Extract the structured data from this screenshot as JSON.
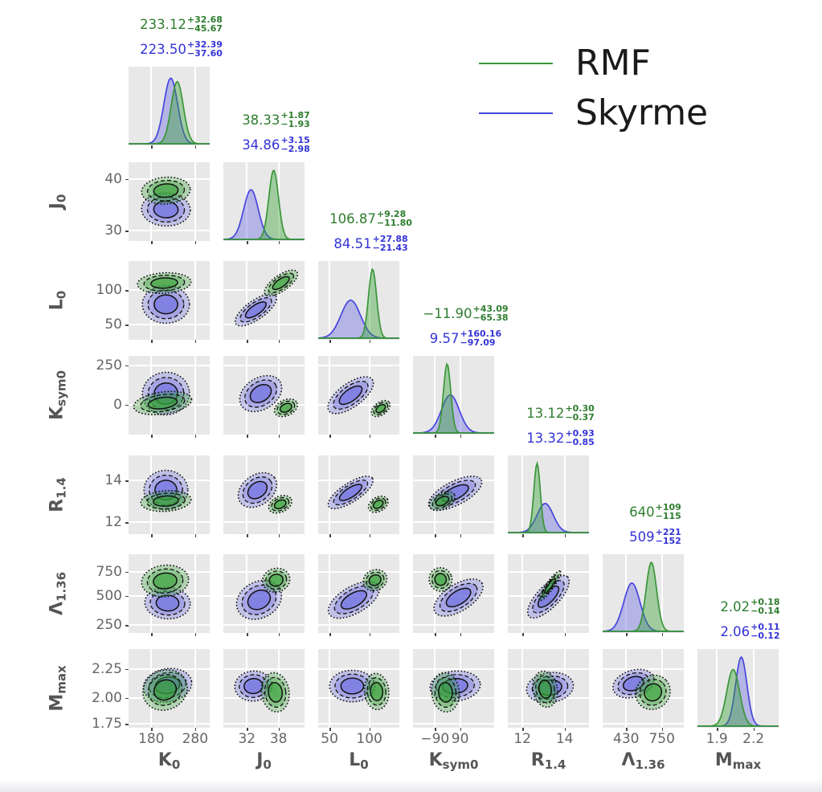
{
  "legend": {
    "items": [
      {
        "label": "RMF",
        "color": "#3a9639"
      },
      {
        "label": "Skyrme",
        "color": "#4646dd"
      }
    ],
    "position": "top-right"
  },
  "colors": {
    "rmf_line": "#3a9639",
    "rmf_fill": "#33a033",
    "rmf_text": "#2e7d2e",
    "skyrme_line": "#4646dd",
    "skyrme_fill": "#6666e0",
    "skyrme_text": "#3434d6",
    "contour_line": "#111111",
    "panel_bg": "#e8e8e8",
    "grid_line": "#ffffff",
    "tick_text": "#666666",
    "axis_text": "#555555"
  },
  "chart_data": {
    "type": "heatmap",
    "subtype": "corner-plot (pairwise KDE contours + marginal densities)",
    "title": "",
    "legend_entries": [
      "RMF",
      "Skyrme"
    ],
    "grid": true,
    "parameters": [
      {
        "name": "K0",
        "label_main": "K",
        "label_sub": "0",
        "rmf_estimate": {
          "value": "233.12",
          "plus": "+32.68",
          "minus": "−45.67"
        },
        "skyrme_estimate": {
          "value": "223.50",
          "plus": "+32.39",
          "minus": "−37.60"
        },
        "x_ticks": [
          {
            "label": "180",
            "f": 0.28
          },
          {
            "label": "280",
            "f": 0.82
          }
        ],
        "y_ticks": [],
        "diag": {
          "rmf": {
            "mu": 0.6,
            "sigma": 0.075,
            "h": 0.9
          },
          "skyrme": {
            "mu": 0.52,
            "sigma": 0.085,
            "h": 0.95
          }
        }
      },
      {
        "name": "J0",
        "label_main": "J",
        "label_sub": "0",
        "rmf_estimate": {
          "value": "38.33",
          "plus": "+1.87",
          "minus": "−1.93"
        },
        "skyrme_estimate": {
          "value": "34.86",
          "plus": "+3.15",
          "minus": "−2.98"
        },
        "x_ticks": [
          {
            "label": "32",
            "f": 0.29
          },
          {
            "label": "38",
            "f": 0.68
          }
        ],
        "y_ticks": [
          {
            "label": "40",
            "f": 0.21
          },
          {
            "label": "30",
            "f": 0.87
          }
        ],
        "diag": {
          "rmf": {
            "mu": 0.62,
            "sigma": 0.06,
            "h": 1.0
          },
          "skyrme": {
            "mu": 0.34,
            "sigma": 0.09,
            "h": 0.72
          }
        }
      },
      {
        "name": "L0",
        "label_main": "L",
        "label_sub": "0",
        "rmf_estimate": {
          "value": "106.87",
          "plus": "+9.28",
          "minus": "−11.80"
        },
        "skyrme_estimate": {
          "value": "84.51",
          "plus": "+27.88",
          "minus": "−21.43"
        },
        "x_ticks": [
          {
            "label": "50",
            "f": 0.14
          },
          {
            "label": "100",
            "f": 0.63
          }
        ],
        "y_ticks": [
          {
            "label": "100",
            "f": 0.37
          },
          {
            "label": "50",
            "f": 0.81
          }
        ],
        "diag": {
          "rmf": {
            "mu": 0.67,
            "sigma": 0.05,
            "h": 1.0
          },
          "skyrme": {
            "mu": 0.4,
            "sigma": 0.12,
            "h": 0.55
          }
        }
      },
      {
        "name": "Ksym0",
        "label_main": "K",
        "label_sub": "sym0",
        "rmf_estimate": {
          "value": "−11.90",
          "plus": "+43.09",
          "minus": "−65.38"
        },
        "skyrme_estimate": {
          "value": "9.57",
          "plus": "+160.16",
          "minus": "−97.09"
        },
        "x_ticks": [
          {
            "label": "−90",
            "f": 0.27
          },
          {
            "label": "90",
            "f": 0.58
          }
        ],
        "y_ticks": [
          {
            "label": "250",
            "f": 0.12
          },
          {
            "label": "0",
            "f": 0.62
          }
        ],
        "diag": {
          "rmf": {
            "mu": 0.42,
            "sigma": 0.045,
            "h": 1.0
          },
          "skyrme": {
            "mu": 0.46,
            "sigma": 0.11,
            "h": 0.55
          }
        }
      },
      {
        "name": "R1.4",
        "label_main": "R",
        "label_sub": "1.4",
        "rmf_estimate": {
          "value": "13.12",
          "plus": "+0.30",
          "minus": "−0.37"
        },
        "skyrme_estimate": {
          "value": "13.32",
          "plus": "+0.93",
          "minus": "−0.85"
        },
        "x_ticks": [
          {
            "label": "12",
            "f": 0.18
          },
          {
            "label": "14",
            "f": 0.7
          }
        ],
        "y_ticks": [
          {
            "label": "14",
            "f": 0.32
          },
          {
            "label": "12",
            "f": 0.85
          }
        ],
        "diag": {
          "rmf": {
            "mu": 0.36,
            "sigma": 0.04,
            "h": 1.0
          },
          "skyrme": {
            "mu": 0.46,
            "sigma": 0.1,
            "h": 0.42
          }
        }
      },
      {
        "name": "Lambda1.36",
        "label_main": "Λ",
        "label_sub": "1.36",
        "rmf_estimate": {
          "value": "640",
          "plus": "+109",
          "minus": "−115"
        },
        "skyrme_estimate": {
          "value": "509",
          "plus": "+221",
          "minus": "−152"
        },
        "x_ticks": [
          {
            "label": "430",
            "f": 0.29
          },
          {
            "label": "750",
            "f": 0.73
          }
        ],
        "y_ticks": [
          {
            "label": "750",
            "f": 0.22
          },
          {
            "label": "500",
            "f": 0.53
          },
          {
            "label": "250",
            "f": 0.9
          }
        ],
        "diag": {
          "rmf": {
            "mu": 0.6,
            "sigma": 0.065,
            "h": 1.0
          },
          "skyrme": {
            "mu": 0.36,
            "sigma": 0.1,
            "h": 0.7
          }
        }
      },
      {
        "name": "Mmax",
        "label_main": "M",
        "label_sub": "max",
        "rmf_estimate": {
          "value": "2.02",
          "plus": "+0.18",
          "minus": "−0.14"
        },
        "skyrme_estimate": {
          "value": "2.06",
          "plus": "+0.11",
          "minus": "−0.12"
        },
        "x_ticks": [
          {
            "label": "1.9",
            "f": 0.24
          },
          {
            "label": "2.2",
            "f": 0.69
          }
        ],
        "y_ticks": [
          {
            "label": "2.25",
            "f": 0.25
          },
          {
            "label": "2.00",
            "f": 0.62
          },
          {
            "label": "1.75",
            "f": 0.95
          }
        ],
        "diag": {
          "rmf": {
            "mu": 0.44,
            "sigma": 0.08,
            "h": 0.82
          },
          "skyrme": {
            "mu": 0.54,
            "sigma": 0.07,
            "h": 1.0
          }
        }
      }
    ],
    "panels": [
      {
        "r": 1,
        "c": 0,
        "blobs": [
          {
            "series": "skyrme",
            "cx": 0.46,
            "cy": 0.6,
            "rx": 0.3,
            "ry": 0.21,
            "rot": 2
          },
          {
            "series": "rmf",
            "cx": 0.46,
            "cy": 0.36,
            "rx": 0.3,
            "ry": 0.17,
            "rot": -4
          }
        ]
      },
      {
        "r": 2,
        "c": 0,
        "blobs": [
          {
            "series": "skyrme",
            "cx": 0.46,
            "cy": 0.55,
            "rx": 0.29,
            "ry": 0.24,
            "rot": 0
          },
          {
            "series": "rmf",
            "cx": 0.44,
            "cy": 0.28,
            "rx": 0.33,
            "ry": 0.13,
            "rot": -3
          }
        ]
      },
      {
        "r": 2,
        "c": 1,
        "blobs": [
          {
            "series": "skyrme",
            "cx": 0.4,
            "cy": 0.62,
            "rx": 0.3,
            "ry": 0.12,
            "rot": -35
          },
          {
            "series": "rmf",
            "cx": 0.71,
            "cy": 0.28,
            "rx": 0.24,
            "ry": 0.1,
            "rot": -35
          }
        ]
      },
      {
        "r": 3,
        "c": 0,
        "blobs": [
          {
            "series": "skyrme",
            "cx": 0.46,
            "cy": 0.48,
            "rx": 0.29,
            "ry": 0.27,
            "rot": -5
          },
          {
            "series": "rmf",
            "cx": 0.42,
            "cy": 0.6,
            "rx": 0.36,
            "ry": 0.14,
            "rot": -8
          }
        ]
      },
      {
        "r": 3,
        "c": 1,
        "blobs": [
          {
            "series": "skyrme",
            "cx": 0.46,
            "cy": 0.48,
            "rx": 0.28,
            "ry": 0.2,
            "rot": -32
          },
          {
            "series": "rmf",
            "cx": 0.77,
            "cy": 0.66,
            "rx": 0.15,
            "ry": 0.1,
            "rot": -25
          }
        ]
      },
      {
        "r": 3,
        "c": 2,
        "blobs": [
          {
            "series": "skyrme",
            "cx": 0.4,
            "cy": 0.5,
            "rx": 0.33,
            "ry": 0.15,
            "rot": -36
          },
          {
            "series": "rmf",
            "cx": 0.77,
            "cy": 0.67,
            "rx": 0.13,
            "ry": 0.08,
            "rot": -36
          }
        ]
      },
      {
        "r": 4,
        "c": 0,
        "blobs": [
          {
            "series": "skyrme",
            "cx": 0.46,
            "cy": 0.44,
            "rx": 0.27,
            "ry": 0.25,
            "rot": 0
          },
          {
            "series": "rmf",
            "cx": 0.46,
            "cy": 0.58,
            "rx": 0.31,
            "ry": 0.13,
            "rot": -4
          }
        ]
      },
      {
        "r": 4,
        "c": 1,
        "blobs": [
          {
            "series": "skyrme",
            "cx": 0.42,
            "cy": 0.44,
            "rx": 0.26,
            "ry": 0.19,
            "rot": -36
          },
          {
            "series": "rmf",
            "cx": 0.7,
            "cy": 0.62,
            "rx": 0.15,
            "ry": 0.1,
            "rot": -25
          }
        ]
      },
      {
        "r": 4,
        "c": 2,
        "blobs": [
          {
            "series": "skyrme",
            "cx": 0.4,
            "cy": 0.47,
            "rx": 0.32,
            "ry": 0.12,
            "rot": -33
          },
          {
            "series": "rmf",
            "cx": 0.74,
            "cy": 0.62,
            "rx": 0.13,
            "ry": 0.09,
            "rot": -30
          }
        ]
      },
      {
        "r": 4,
        "c": 3,
        "blobs": [
          {
            "series": "skyrme",
            "cx": 0.52,
            "cy": 0.48,
            "rx": 0.36,
            "ry": 0.15,
            "rot": -27
          },
          {
            "series": "rmf",
            "cx": 0.36,
            "cy": 0.58,
            "rx": 0.17,
            "ry": 0.1,
            "rot": -27
          }
        ]
      },
      {
        "r": 5,
        "c": 0,
        "blobs": [
          {
            "series": "skyrme",
            "cx": 0.48,
            "cy": 0.62,
            "rx": 0.28,
            "ry": 0.2,
            "rot": 3
          },
          {
            "series": "rmf",
            "cx": 0.45,
            "cy": 0.34,
            "rx": 0.29,
            "ry": 0.2,
            "rot": -6
          }
        ]
      },
      {
        "r": 5,
        "c": 1,
        "blobs": [
          {
            "series": "skyrme",
            "cx": 0.44,
            "cy": 0.58,
            "rx": 0.29,
            "ry": 0.23,
            "rot": -28
          },
          {
            "series": "rmf",
            "cx": 0.65,
            "cy": 0.33,
            "rx": 0.17,
            "ry": 0.15,
            "rot": -15
          }
        ]
      },
      {
        "r": 5,
        "c": 2,
        "blobs": [
          {
            "series": "skyrme",
            "cx": 0.44,
            "cy": 0.58,
            "rx": 0.35,
            "ry": 0.17,
            "rot": -30
          },
          {
            "series": "rmf",
            "cx": 0.7,
            "cy": 0.33,
            "rx": 0.15,
            "ry": 0.13,
            "rot": -25
          }
        ]
      },
      {
        "r": 5,
        "c": 3,
        "blobs": [
          {
            "series": "skyrme",
            "cx": 0.56,
            "cy": 0.55,
            "rx": 0.34,
            "ry": 0.17,
            "rot": -32
          },
          {
            "series": "rmf",
            "cx": 0.34,
            "cy": 0.32,
            "rx": 0.14,
            "ry": 0.15,
            "rot": -20
          }
        ]
      },
      {
        "r": 5,
        "c": 4,
        "blobs": [
          {
            "series": "skyrme",
            "cx": 0.5,
            "cy": 0.54,
            "rx": 0.34,
            "ry": 0.14,
            "rot": -46
          },
          {
            "series": "rmf",
            "cx": 0.52,
            "cy": 0.4,
            "rx": 0.22,
            "ry": 0.05,
            "rot": -55
          }
        ]
      },
      {
        "r": 6,
        "c": 0,
        "blobs": [
          {
            "series": "skyrme",
            "cx": 0.48,
            "cy": 0.46,
            "rx": 0.3,
            "ry": 0.21,
            "rot": -10
          },
          {
            "series": "rmf",
            "cx": 0.45,
            "cy": 0.52,
            "rx": 0.28,
            "ry": 0.25,
            "rot": -25
          }
        ]
      },
      {
        "r": 6,
        "c": 1,
        "blobs": [
          {
            "series": "skyrme",
            "cx": 0.37,
            "cy": 0.47,
            "rx": 0.23,
            "ry": 0.19,
            "rot": -5
          },
          {
            "series": "rmf",
            "cx": 0.64,
            "cy": 0.55,
            "rx": 0.17,
            "ry": 0.25,
            "rot": -8
          }
        ]
      },
      {
        "r": 6,
        "c": 2,
        "blobs": [
          {
            "series": "skyrme",
            "cx": 0.42,
            "cy": 0.47,
            "rx": 0.28,
            "ry": 0.2,
            "rot": 0
          },
          {
            "series": "rmf",
            "cx": 0.72,
            "cy": 0.54,
            "rx": 0.15,
            "ry": 0.23,
            "rot": -5
          }
        ]
      },
      {
        "r": 6,
        "c": 3,
        "blobs": [
          {
            "series": "skyrme",
            "cx": 0.52,
            "cy": 0.47,
            "rx": 0.31,
            "ry": 0.19,
            "rot": -5
          },
          {
            "series": "rmf",
            "cx": 0.4,
            "cy": 0.55,
            "rx": 0.17,
            "ry": 0.25,
            "rot": -5
          }
        ]
      },
      {
        "r": 6,
        "c": 4,
        "blobs": [
          {
            "series": "skyrme",
            "cx": 0.52,
            "cy": 0.49,
            "rx": 0.29,
            "ry": 0.19,
            "rot": -8
          },
          {
            "series": "rmf",
            "cx": 0.46,
            "cy": 0.51,
            "rx": 0.15,
            "ry": 0.23,
            "rot": -10
          }
        ]
      },
      {
        "r": 6,
        "c": 5,
        "blobs": [
          {
            "series": "skyrme",
            "cx": 0.38,
            "cy": 0.44,
            "rx": 0.26,
            "ry": 0.17,
            "rot": -18
          },
          {
            "series": "rmf",
            "cx": 0.62,
            "cy": 0.55,
            "rx": 0.22,
            "ry": 0.21,
            "rot": -42
          }
        ]
      }
    ]
  }
}
